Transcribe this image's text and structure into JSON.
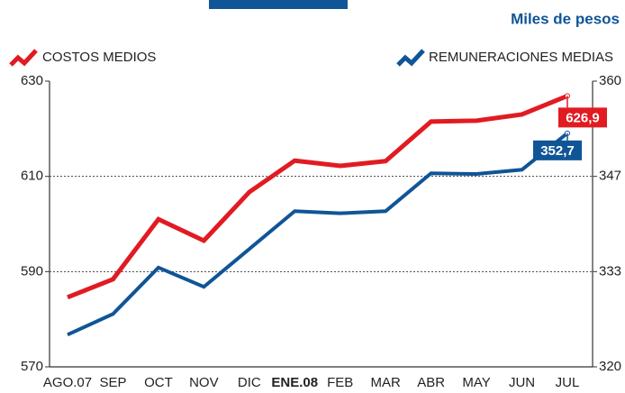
{
  "chart_data": {
    "type": "line",
    "subtitle": "Miles de pesos",
    "categories": [
      "AGO.07",
      "SEP",
      "OCT",
      "NOV",
      "DIC",
      "ENE.08",
      "FEB",
      "MAR",
      "ABR",
      "MAY",
      "JUN",
      "JUL"
    ],
    "series": [
      {
        "name": "COSTOS MEDIOS",
        "color": "#e11b22",
        "values": [
          584.6,
          588.4,
          601.0,
          596.5,
          606.7,
          613.3,
          612.2,
          613.2,
          621.5,
          621.7,
          623.0,
          626.9
        ],
        "value_labels": [
          null,
          null,
          null,
          null,
          null,
          null,
          null,
          null,
          null,
          null,
          null,
          "626,9"
        ]
      },
      {
        "name": "REMUNERACIONES MEDIAS",
        "color": "#0f5597",
        "axis": "y2",
        "values": [
          324.5,
          327.4,
          333.9,
          331.2,
          336.5,
          341.8,
          341.5,
          341.8,
          347.1,
          347.0,
          347.6,
          352.7
        ],
        "value_labels": [
          null,
          null,
          null,
          null,
          null,
          null,
          null,
          null,
          null,
          null,
          null,
          "352,7"
        ]
      }
    ],
    "ylim": [
      570,
      630
    ],
    "yticks": [
      570,
      590,
      610,
      630
    ],
    "y2lim": [
      320,
      360
    ],
    "y2ticks": [
      320,
      {
        "value": 333.333,
        "label": "333"
      },
      {
        "value": 346.667,
        "label": "347"
      },
      360
    ],
    "grid": true
  }
}
